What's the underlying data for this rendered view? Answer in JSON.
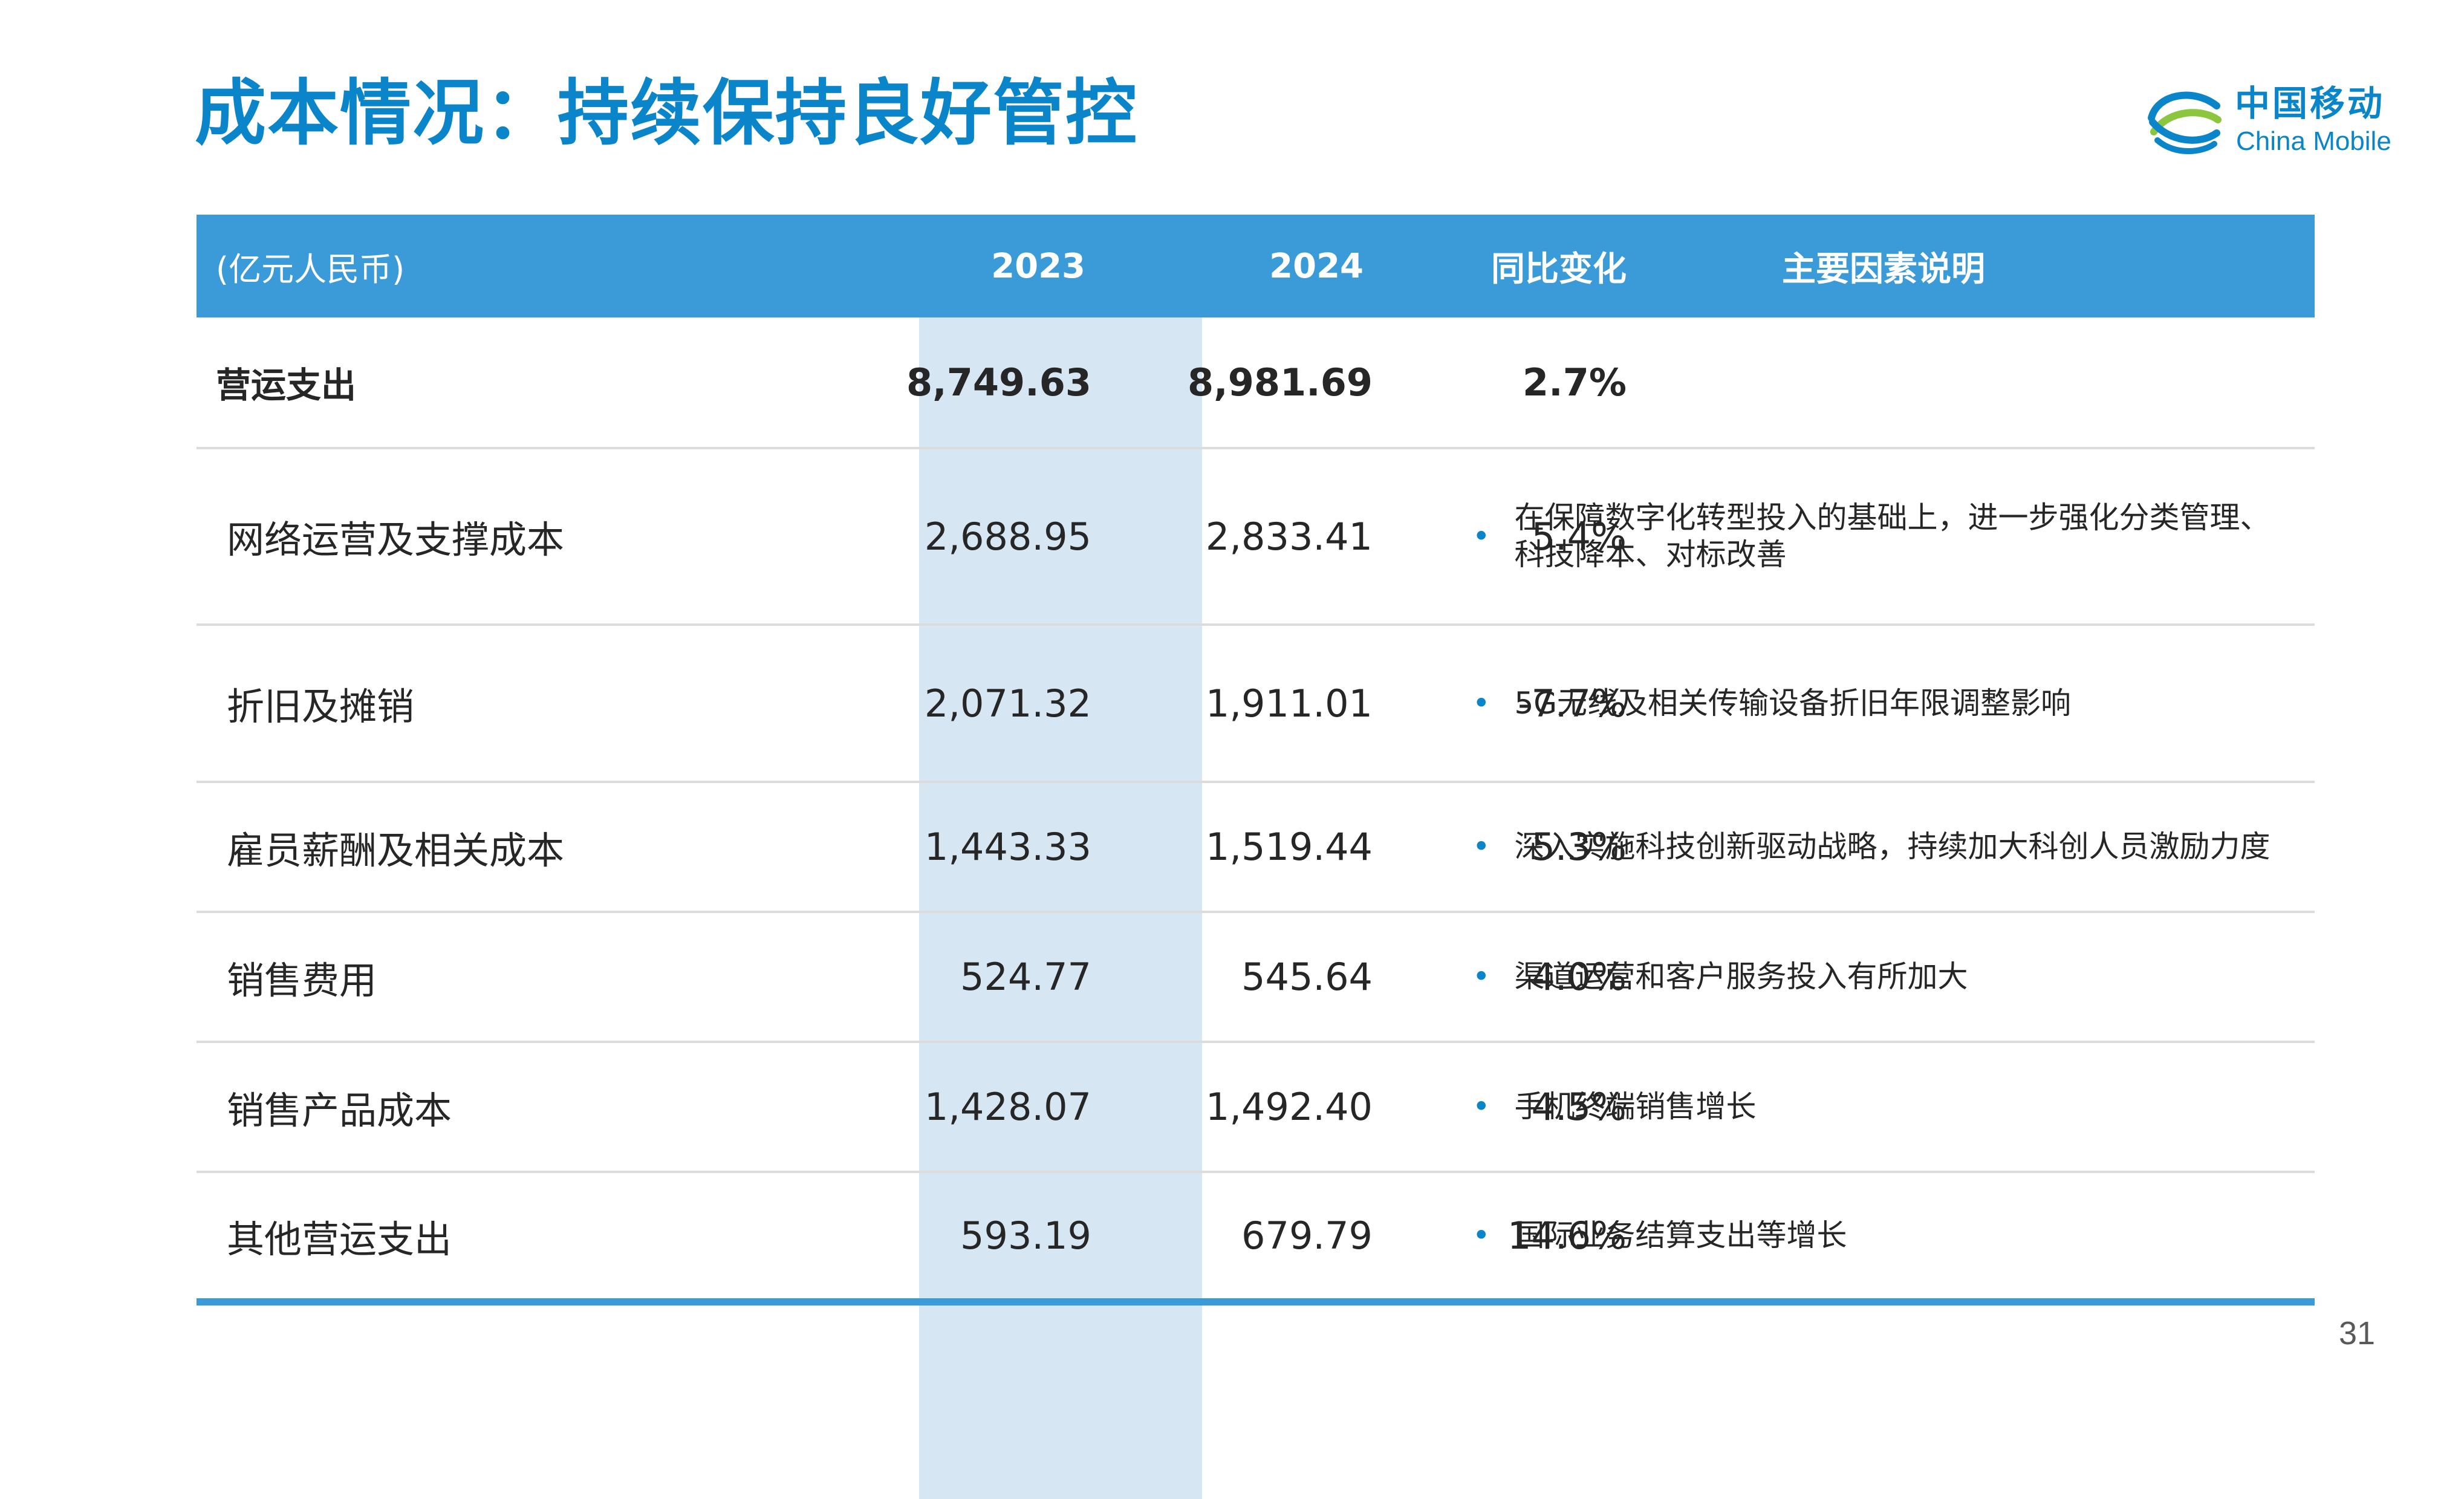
{
  "title": "成本情况：持续保持良好管控",
  "logo": {
    "cn": "中国移动",
    "en": "China Mobile",
    "icon": "china-mobile-logo-icon",
    "color": "#0a85c9"
  },
  "colors": {
    "header_bg": "#3b9ad8",
    "highlight_col": "#d6e6f2",
    "title": "#0a85c9"
  },
  "table": {
    "header": {
      "unit": "(亿元人民币)",
      "y2023": "2023",
      "y2024": "2024",
      "yoy": "同比变化",
      "desc": "主要因素说明"
    },
    "rows": [
      {
        "label": "营运支出",
        "y2023": "8,749.63",
        "y2024": "8,981.69",
        "yoy": "2.7%",
        "desc": ""
      },
      {
        "label": "网络运营及支撑成本",
        "y2023": "2,688.95",
        "y2024": "2,833.41",
        "yoy": "5.4%",
        "desc": "在保障数字化转型投入的基础上，进一步强化分类管理、科技降本、对标改善"
      },
      {
        "label": "折旧及摊销",
        "y2023": "2,071.32",
        "y2024": "1,911.01",
        "yoy": "-7.7%",
        "desc": "5G无线及相关传输设备折旧年限调整影响"
      },
      {
        "label": "雇员薪酬及相关成本",
        "y2023": "1,443.33",
        "y2024": "1,519.44",
        "yoy": "5.3%",
        "desc": "深入实施科技创新驱动战略，持续加大科创人员激励力度"
      },
      {
        "label": "销售费用",
        "y2023": "524.77",
        "y2024": "545.64",
        "yoy": "4.0%",
        "desc": "渠道运营和客户服务投入有所加大"
      },
      {
        "label": "销售产品成本",
        "y2023": "1,428.07",
        "y2024": "1,492.40",
        "yoy": "4.5%",
        "desc": "手机终端销售增长"
      },
      {
        "label": "其他营运支出",
        "y2023": "593.19",
        "y2024": "679.79",
        "yoy": "14.6%",
        "desc": "国际业务结算支出等增长"
      }
    ],
    "bullet": "•"
  },
  "page_number": "31"
}
